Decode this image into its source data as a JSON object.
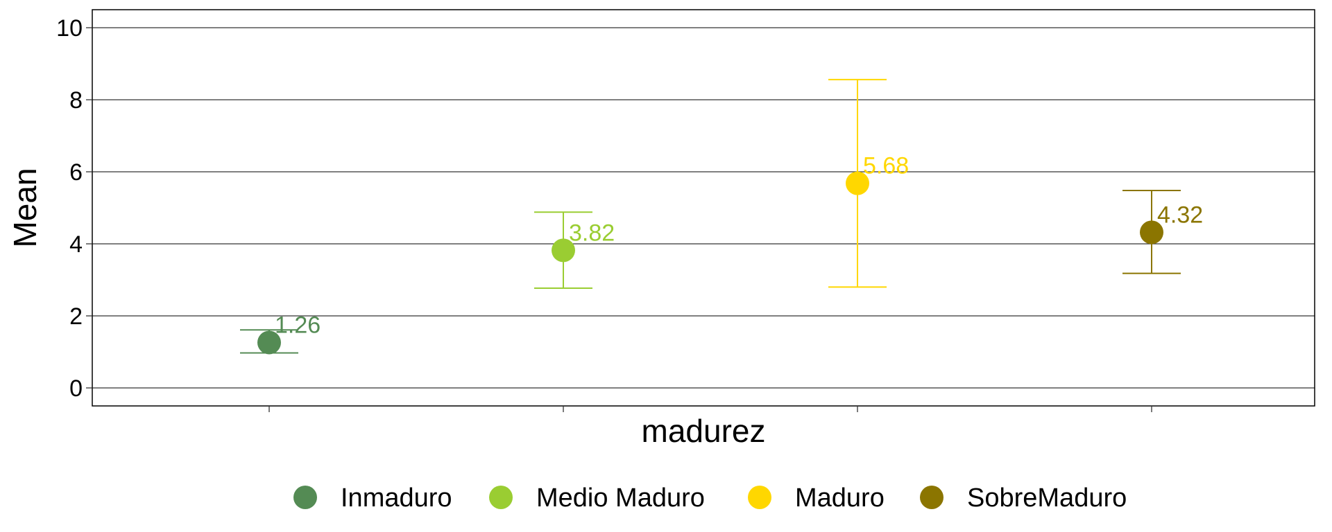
{
  "chart_data": {
    "type": "scatter",
    "title": "",
    "xlabel": "madurez",
    "ylabel": "Mean",
    "ylim": [
      -0.5,
      10.5
    ],
    "yticks": [
      0,
      2,
      4,
      6,
      8,
      10
    ],
    "grid": "horizontal",
    "legend_position": "bottom",
    "series": [
      {
        "name": "Inmaduro",
        "mean": 1.26,
        "lower": 0.97,
        "upper": 1.61,
        "label": "1.26",
        "color": "#548B54"
      },
      {
        "name": "Medio Maduro",
        "mean": 3.82,
        "lower": 2.77,
        "upper": 4.88,
        "label": "3.82",
        "color": "#9ACD32"
      },
      {
        "name": "Maduro",
        "mean": 5.68,
        "lower": 2.8,
        "upper": 8.56,
        "label": "5.68",
        "color": "#FFD700"
      },
      {
        "name": "SobreMaduro",
        "mean": 4.32,
        "lower": 3.18,
        "upper": 5.48,
        "label": "4.32",
        "color": "#8B7500"
      }
    ]
  }
}
